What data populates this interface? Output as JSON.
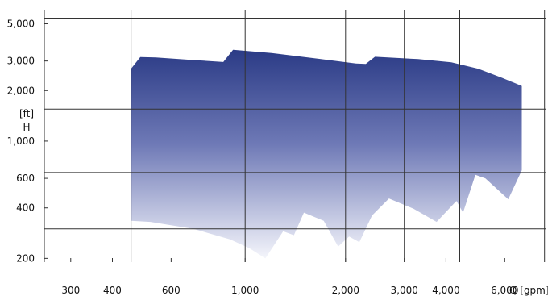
{
  "chart_data": {
    "type": "area",
    "title": "",
    "xlabel": "Q [gpm]",
    "ylabel_unit": "[ft]",
    "ylabel_symbol": "H",
    "x_scale": "log",
    "y_scale": "log",
    "xlim": [
      250,
      8000
    ],
    "ylim": [
      190,
      6000
    ],
    "x_ticks": [
      {
        "value": 300,
        "label": "300"
      },
      {
        "value": 400,
        "label": "400"
      },
      {
        "value": 600,
        "label": "600"
      },
      {
        "value": 1000,
        "label": "1,000"
      },
      {
        "value": 2000,
        "label": "2,000"
      },
      {
        "value": 3000,
        "label": "3,000"
      },
      {
        "value": 4000,
        "label": "4,000"
      },
      {
        "value": 6000,
        "label": "6,000"
      }
    ],
    "y_ticks": [
      {
        "value": 200,
        "label": "200"
      },
      {
        "value": 400,
        "label": "400"
      },
      {
        "value": 600,
        "label": "600"
      },
      {
        "value": 1000,
        "label": "1,000"
      },
      {
        "value": 2000,
        "label": "2,000"
      },
      {
        "value": 3000,
        "label": "3,000"
      },
      {
        "value": 5000,
        "label": "5,000"
      }
    ],
    "envelope": [
      [
        455,
        2700
      ],
      [
        485,
        3170
      ],
      [
        540,
        3150
      ],
      [
        680,
        3050
      ],
      [
        860,
        2960
      ],
      [
        920,
        3500
      ],
      [
        1200,
        3350
      ],
      [
        1650,
        3100
      ],
      [
        2150,
        2900
      ],
      [
        2300,
        2880
      ],
      [
        2450,
        3180
      ],
      [
        3300,
        3080
      ],
      [
        4150,
        2950
      ],
      [
        5000,
        2700
      ],
      [
        5900,
        2380
      ],
      [
        6750,
        2130
      ],
      [
        6750,
        670
      ],
      [
        6150,
        450
      ],
      [
        5250,
        600
      ],
      [
        4900,
        630
      ],
      [
        4500,
        375
      ],
      [
        4300,
        440
      ],
      [
        3750,
        330
      ],
      [
        3200,
        395
      ],
      [
        2700,
        455
      ],
      [
        2400,
        360
      ],
      [
        2200,
        250
      ],
      [
        2050,
        270
      ],
      [
        1900,
        235
      ],
      [
        1720,
        335
      ],
      [
        1500,
        375
      ],
      [
        1400,
        275
      ],
      [
        1300,
        290
      ],
      [
        1150,
        200
      ],
      [
        1030,
        230
      ],
      [
        900,
        260
      ],
      [
        700,
        300
      ],
      [
        520,
        330
      ],
      [
        455,
        335
      ]
    ],
    "fill_colors": {
      "top": "#2b3b86",
      "bottom": "#f4f5fb"
    },
    "grid_color": "#333333",
    "grid_x": [
      250,
      455,
      1000,
      2000,
      3000,
      4400,
      7900
    ],
    "grid_y": [
      300,
      650,
      1550,
      5400
    ]
  }
}
